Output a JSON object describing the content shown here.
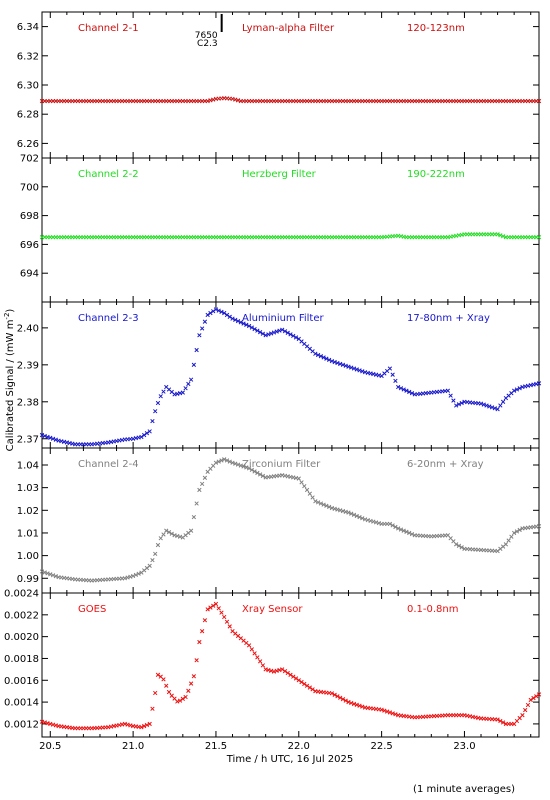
{
  "figure": {
    "ylabel": "Calibrated Signal / (mW m",
    "ylabel_sup": "-2",
    "ylabel_end": ")",
    "xlabel": "Time / h UTC, 16 Jul 2025",
    "footnote": "(1 minute averages)",
    "marker_label_top": "7650",
    "marker_label_bottom": "C2.3"
  },
  "chart_data": [
    {
      "type": "scatter",
      "channel": "Channel 2-1",
      "filter": "Lyman-alpha Filter",
      "band": "120-123nm",
      "color": "#cc1010",
      "label_color": "#cc1010",
      "xlim": [
        20.45,
        23.45
      ],
      "ylim": [
        6.25,
        6.35
      ],
      "yticks": [
        6.26,
        6.28,
        6.3,
        6.32,
        6.34
      ],
      "yticklabels": [
        "6.26",
        "6.28",
        "6.30",
        "6.32",
        "6.34"
      ],
      "x": [
        20.45,
        21.45,
        21.5,
        21.55,
        21.6,
        21.65,
        23.45
      ],
      "y": [
        6.289,
        6.289,
        6.2905,
        6.291,
        6.2905,
        6.289,
        6.289
      ]
    },
    {
      "type": "scatter",
      "channel": "Channel 2-2",
      "filter": "Herzberg Filter",
      "band": "190-222nm",
      "color": "#22dd22",
      "label_color": "#22dd22",
      "xlim": [
        20.45,
        23.45
      ],
      "ylim": [
        692,
        702
      ],
      "yticks": [
        694,
        696,
        698,
        700,
        702
      ],
      "yticklabels": [
        "694",
        "696",
        "698",
        "700",
        "702"
      ],
      "x": [
        20.45,
        21.0,
        21.5,
        22.5,
        22.6,
        22.65,
        22.9,
        23.0,
        23.2,
        23.25,
        23.45
      ],
      "y": [
        696.5,
        696.5,
        696.5,
        696.5,
        696.6,
        696.5,
        696.5,
        696.7,
        696.7,
        696.5,
        696.5
      ]
    },
    {
      "type": "scatter",
      "channel": "Channel 2-3",
      "filter": "Aluminium Filter",
      "band": "17-80nm + Xray",
      "color": "#1818cc",
      "label_color": "#1818cc",
      "xlim": [
        20.45,
        23.45
      ],
      "ylim": [
        2.3675,
        2.407
      ],
      "yticks": [
        2.37,
        2.38,
        2.39,
        2.4
      ],
      "yticklabels": [
        "2.37",
        "2.38",
        "2.39",
        "2.40"
      ],
      "x": [
        20.45,
        20.55,
        20.65,
        20.75,
        20.85,
        20.95,
        21.0,
        21.05,
        21.1,
        21.13,
        21.16,
        21.2,
        21.25,
        21.3,
        21.35,
        21.4,
        21.45,
        21.5,
        21.55,
        21.6,
        21.7,
        21.8,
        21.9,
        22.0,
        22.1,
        22.2,
        22.3,
        22.4,
        22.5,
        22.55,
        22.6,
        22.7,
        22.8,
        22.9,
        22.95,
        23.0,
        23.1,
        23.2,
        23.25,
        23.3,
        23.35,
        23.45
      ],
      "y": [
        2.371,
        2.3695,
        2.3685,
        2.3685,
        2.369,
        2.3698,
        2.37,
        2.3705,
        2.372,
        2.377,
        2.381,
        2.384,
        2.382,
        2.3825,
        2.386,
        2.398,
        2.4035,
        2.405,
        2.404,
        2.4025,
        2.4005,
        2.398,
        2.3995,
        2.397,
        2.393,
        2.391,
        2.3895,
        2.388,
        2.387,
        2.389,
        2.384,
        2.382,
        2.3825,
        2.383,
        2.379,
        2.38,
        2.3795,
        2.378,
        2.381,
        2.383,
        2.384,
        2.385
      ]
    },
    {
      "type": "scatter",
      "channel": "Channel 2-4",
      "filter": "Zirconium Filter",
      "band": "6-20nm + Xray",
      "color": "#808080",
      "label_color": "#808080",
      "xlim": [
        20.45,
        23.45
      ],
      "ylim": [
        0.9835,
        1.0475
      ],
      "yticks": [
        0.99,
        1.0,
        1.01,
        1.02,
        1.03,
        1.04
      ],
      "yticklabels": [
        "0.99",
        "1.00",
        "1.01",
        "1.02",
        "1.03",
        "1.04"
      ],
      "x": [
        20.45,
        20.55,
        20.65,
        20.75,
        20.85,
        20.95,
        21.0,
        21.05,
        21.1,
        21.13,
        21.16,
        21.2,
        21.25,
        21.3,
        21.35,
        21.4,
        21.45,
        21.5,
        21.55,
        21.6,
        21.7,
        21.8,
        21.9,
        22.0,
        22.1,
        22.2,
        22.3,
        22.4,
        22.5,
        22.55,
        22.6,
        22.7,
        22.8,
        22.9,
        22.95,
        23.0,
        23.1,
        23.2,
        23.25,
        23.3,
        23.35,
        23.45
      ],
      "y": [
        0.993,
        0.9905,
        0.9895,
        0.989,
        0.9895,
        0.99,
        0.991,
        0.9925,
        0.9955,
        1.0,
        1.007,
        1.011,
        1.009,
        1.008,
        1.011,
        1.029,
        1.037,
        1.041,
        1.0425,
        1.041,
        1.0385,
        1.0345,
        1.0355,
        1.034,
        1.024,
        1.021,
        1.019,
        1.016,
        1.014,
        1.014,
        1.012,
        1.009,
        1.0085,
        1.009,
        1.005,
        1.003,
        1.0025,
        1.002,
        1.005,
        1.01,
        1.012,
        1.013
      ]
    },
    {
      "type": "scatter",
      "channel": "GOES",
      "filter": "Xray Sensor",
      "band": "0.1-0.8nm",
      "color": "#ee1010",
      "label_color": "#ee1010",
      "xlim": [
        20.45,
        23.45
      ],
      "ylim": [
        0.00108,
        0.0024
      ],
      "yticks": [
        0.0012,
        0.0014,
        0.0016,
        0.0018,
        0.002,
        0.0022,
        0.0024
      ],
      "yticklabels": [
        "0.0012",
        "0.0014",
        "0.0016",
        "0.0018",
        "0.0020",
        "0.0022",
        "0.0024"
      ],
      "x": [
        20.45,
        20.55,
        20.65,
        20.75,
        20.85,
        20.95,
        21.0,
        21.05,
        21.1,
        21.13,
        21.15,
        21.18,
        21.22,
        21.27,
        21.32,
        21.37,
        21.4,
        21.45,
        21.5,
        21.55,
        21.6,
        21.7,
        21.8,
        21.85,
        21.9,
        22.0,
        22.1,
        22.2,
        22.3,
        22.4,
        22.5,
        22.6,
        22.7,
        22.8,
        22.9,
        23.0,
        23.1,
        23.2,
        23.25,
        23.3,
        23.35,
        23.4,
        23.45
      ],
      "y": [
        0.00122,
        0.00118,
        0.00116,
        0.00116,
        0.00117,
        0.0012,
        0.00118,
        0.00117,
        0.0012,
        0.00145,
        0.00165,
        0.00162,
        0.00148,
        0.0014,
        0.00145,
        0.00165,
        0.00195,
        0.00225,
        0.0023,
        0.00218,
        0.00205,
        0.00192,
        0.0017,
        0.00168,
        0.0017,
        0.0016,
        0.0015,
        0.00148,
        0.0014,
        0.00135,
        0.00133,
        0.00128,
        0.00126,
        0.00127,
        0.00128,
        0.00128,
        0.00125,
        0.00124,
        0.0012,
        0.0012,
        0.00128,
        0.00142,
        0.00147
      ]
    }
  ],
  "xaxis": {
    "ticks": [
      20.5,
      21.0,
      21.5,
      22.0,
      22.5,
      23.0
    ],
    "ticklabels": [
      "20.5",
      "21.0",
      "21.5",
      "22.0",
      "22.5",
      "23.0"
    ],
    "minor_step": 0.1,
    "event_marker_x": 21.45
  }
}
